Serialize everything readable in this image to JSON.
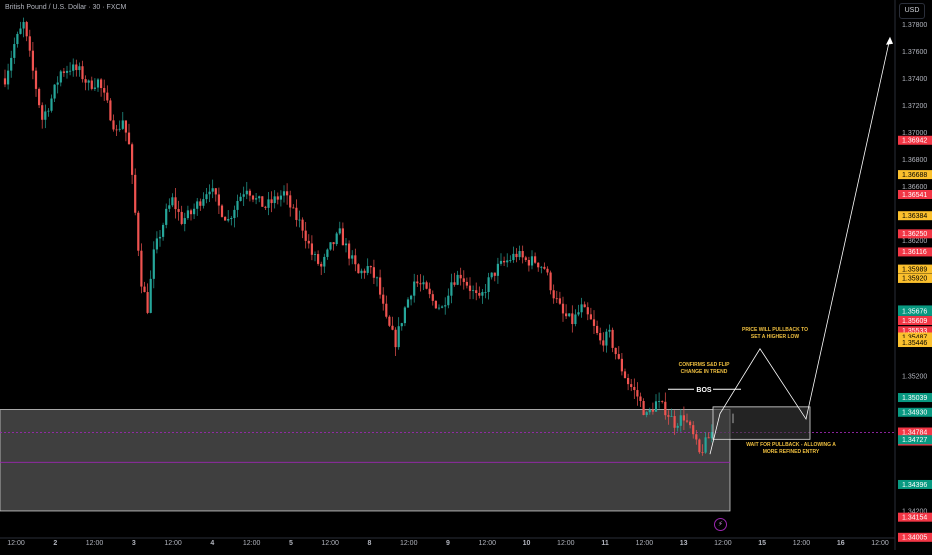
{
  "header": {
    "symbol_title": "British Pound / U.S. Dollar · 30 · FXCM",
    "currency_button": "USD"
  },
  "colors": {
    "background": "#000000",
    "up": "#26a69a",
    "down": "#ef5350",
    "axis_text": "#b2b5be",
    "zone_fill": "#4a4a4a",
    "purple": "#9c27b0",
    "annotation": "#f0c040"
  },
  "chart_data": {
    "type": "candlestick",
    "ylim": [
      1.34,
      1.3795
    ],
    "yticks": [
      1.378,
      1.376,
      1.374,
      1.372,
      1.37,
      1.368,
      1.366,
      1.362,
      1.352,
      1.342
    ],
    "price_labels": [
      {
        "value": 1.36942,
        "text": "1.36942",
        "color": "red"
      },
      {
        "value": 1.36688,
        "text": "1.36688",
        "color": "yellow"
      },
      {
        "value": 1.36541,
        "text": "1.36541",
        "color": "red"
      },
      {
        "value": 1.36384,
        "text": "1.36384",
        "color": "yellow"
      },
      {
        "value": 1.3625,
        "text": "1.36250",
        "color": "red"
      },
      {
        "value": 1.36116,
        "text": "1.36116",
        "color": "red"
      },
      {
        "value": 1.35989,
        "text": "1.35989",
        "color": "yellow"
      },
      {
        "value": 1.3592,
        "text": "1.35920",
        "color": "yellow"
      },
      {
        "value": 1.35687,
        "text": "1.35687",
        "color": "teal"
      },
      {
        "value": 1.35676,
        "text": "1.35676",
        "color": "teal"
      },
      {
        "value": 1.35609,
        "text": "1.35609",
        "color": "red"
      },
      {
        "value": 1.35533,
        "text": "1.35533",
        "color": "red"
      },
      {
        "value": 1.35487,
        "text": "1.35487",
        "color": "yellow"
      },
      {
        "value": 1.35446,
        "text": "1.35446",
        "color": "yellow"
      },
      {
        "value": 1.35039,
        "text": "1.35039",
        "color": "teal"
      },
      {
        "value": 1.3493,
        "text": "1.34930",
        "color": "teal"
      },
      {
        "value": 1.34784,
        "text": "1.34784",
        "color": "red",
        "sub": "08:38"
      },
      {
        "value": 1.34727,
        "text": "1.34727",
        "color": "teal"
      },
      {
        "value": 1.34396,
        "text": "1.34396",
        "color": "teal"
      },
      {
        "value": 1.34154,
        "text": "1.34154",
        "color": "red"
      },
      {
        "value": 1.34005,
        "text": "1.34005",
        "color": "red"
      }
    ],
    "xticks": [
      {
        "label": "12:00",
        "bold": false
      },
      {
        "label": "2",
        "bold": true
      },
      {
        "label": "12:00",
        "bold": false
      },
      {
        "label": "3",
        "bold": true
      },
      {
        "label": "12:00",
        "bold": false
      },
      {
        "label": "4",
        "bold": true
      },
      {
        "label": "12:00",
        "bold": false
      },
      {
        "label": "5",
        "bold": true
      },
      {
        "label": "12:00",
        "bold": false
      },
      {
        "label": "8",
        "bold": true
      },
      {
        "label": "12:00",
        "bold": false
      },
      {
        "label": "9",
        "bold": true
      },
      {
        "label": "12:00",
        "bold": false
      },
      {
        "label": "10",
        "bold": true
      },
      {
        "label": "12:00",
        "bold": false
      },
      {
        "label": "11",
        "bold": true
      },
      {
        "label": "12:00",
        "bold": false
      },
      {
        "label": "13",
        "bold": true
      },
      {
        "label": "12:00",
        "bold": false
      },
      {
        "label": "15",
        "bold": true
      },
      {
        "label": "12:00",
        "bold": false
      },
      {
        "label": "16",
        "bold": true
      },
      {
        "label": "12:00",
        "bold": false
      }
    ],
    "close_path": [
      [
        0,
        1.374
      ],
      [
        3,
        1.3765
      ],
      [
        6,
        1.378
      ],
      [
        9,
        1.3745
      ],
      [
        12,
        1.371
      ],
      [
        15,
        1.3725
      ],
      [
        18,
        1.3745
      ],
      [
        21,
        1.3748
      ],
      [
        24,
        1.3745
      ],
      [
        27,
        1.3735
      ],
      [
        30,
        1.3738
      ],
      [
        33,
        1.372
      ],
      [
        36,
        1.37
      ],
      [
        38,
        1.371
      ],
      [
        40,
        1.369
      ],
      [
        42,
        1.364
      ],
      [
        44,
        1.359
      ],
      [
        46,
        1.357
      ],
      [
        48,
        1.361
      ],
      [
        50,
        1.3625
      ],
      [
        52,
        1.364
      ],
      [
        54,
        1.365
      ],
      [
        57,
        1.3635
      ],
      [
        60,
        1.364
      ],
      [
        63,
        1.365
      ],
      [
        66,
        1.366
      ],
      [
        69,
        1.3645
      ],
      [
        72,
        1.3635
      ],
      [
        75,
        1.365
      ],
      [
        78,
        1.366
      ],
      [
        81,
        1.365
      ],
      [
        84,
        1.3645
      ],
      [
        87,
        1.365
      ],
      [
        90,
        1.3655
      ],
      [
        93,
        1.364
      ],
      [
        96,
        1.363
      ],
      [
        99,
        1.361
      ],
      [
        102,
        1.36
      ],
      [
        105,
        1.3615
      ],
      [
        108,
        1.3625
      ],
      [
        111,
        1.361
      ],
      [
        114,
        1.3595
      ],
      [
        117,
        1.36
      ],
      [
        120,
        1.359
      ],
      [
        123,
        1.356
      ],
      [
        126,
        1.3545
      ],
      [
        129,
        1.357
      ],
      [
        132,
        1.359
      ],
      [
        135,
        1.3585
      ],
      [
        138,
        1.3575
      ],
      [
        141,
        1.357
      ],
      [
        144,
        1.359
      ],
      [
        147,
        1.3595
      ],
      [
        150,
        1.3585
      ],
      [
        153,
        1.3575
      ],
      [
        156,
        1.359
      ],
      [
        159,
        1.36
      ],
      [
        162,
        1.3605
      ],
      [
        165,
        1.361
      ],
      [
        168,
        1.3605
      ],
      [
        171,
        1.3605
      ],
      [
        174,
        1.36
      ],
      [
        177,
        1.358
      ],
      [
        180,
        1.3565
      ],
      [
        183,
        1.356
      ],
      [
        186,
        1.357
      ],
      [
        189,
        1.356
      ],
      [
        192,
        1.3545
      ],
      [
        195,
        1.355
      ],
      [
        198,
        1.353
      ],
      [
        201,
        1.3515
      ],
      [
        204,
        1.3505
      ],
      [
        207,
        1.349
      ],
      [
        210,
        1.35
      ],
      [
        213,
        1.3495
      ],
      [
        216,
        1.3485
      ],
      [
        219,
        1.349
      ],
      [
        222,
        1.3475
      ],
      [
        224,
        1.3462
      ],
      [
        226,
        1.347
      ],
      [
        228,
        1.3478
      ]
    ],
    "annotations": {
      "bos": "BOS",
      "confirms_line1": "CONFIRMS S&D FLIP",
      "confirms_line2": "CHANGE IN TREND",
      "pullback_line1": "PRICE WILL PULLBACK TO",
      "pullback_line2": "SET A HIGHER LOW",
      "wait_line1": "WAIT FOR PULLBACK - ALLOWING A",
      "wait_line2": "MORE REFINED ENTRY"
    }
  }
}
